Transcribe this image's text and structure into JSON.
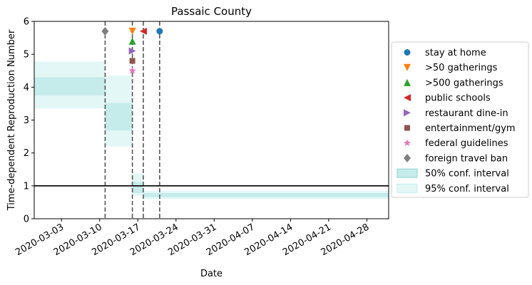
{
  "chart_data": {
    "type": "line",
    "title": "Passaic County",
    "xlabel": "Date",
    "ylabel": "Time-dependent Reproduction Number",
    "xlim": [
      "2020-02-27",
      "2020-05-02"
    ],
    "ylim": [
      0,
      6
    ],
    "yticks": [
      0,
      1,
      2,
      3,
      4,
      5,
      6
    ],
    "xticks": [
      "2020-03-03",
      "2020-03-10",
      "2020-03-17",
      "2020-03-24",
      "2020-03-31",
      "2020-04-07",
      "2020-04-14",
      "2020-04-21",
      "2020-04-28"
    ],
    "reference_line": {
      "y": 1,
      "color": "#000000"
    },
    "intervals": [
      {
        "start": "2020-02-27",
        "end": "2020-03-11",
        "ci50": [
          3.75,
          4.3
        ],
        "ci95": [
          3.35,
          4.78
        ]
      },
      {
        "start": "2020-03-11",
        "end": "2020-03-16",
        "ci50": [
          2.68,
          3.52
        ],
        "ci95": [
          2.2,
          4.35
        ]
      },
      {
        "start": "2020-03-16",
        "end": "2020-03-18",
        "ci50": [
          0.78,
          1.12
        ],
        "ci95": [
          0.7,
          1.38
        ]
      },
      {
        "start": "2020-03-18",
        "end": "2020-05-02",
        "ci50": [
          0.66,
          0.78
        ],
        "ci95": [
          0.6,
          0.84
        ]
      }
    ],
    "interventions": [
      {
        "name": "stay at home",
        "date": "2020-03-21",
        "y": 5.7,
        "marker": "circle",
        "color": "#1f77b4"
      },
      {
        "name": ">50 gatherings",
        "date": "2020-03-16",
        "y": 5.7,
        "marker": "triangle-down",
        "color": "#ff7f0e"
      },
      {
        "name": ">500 gatherings",
        "date": "2020-03-16",
        "y": 5.4,
        "marker": "triangle-up",
        "color": "#2ca02c"
      },
      {
        "name": "public schools",
        "date": "2020-03-18",
        "y": 5.7,
        "marker": "triangle-left",
        "color": "#d62728"
      },
      {
        "name": "restaurant dine-in",
        "date": "2020-03-16",
        "y": 5.1,
        "marker": "triangle-right",
        "color": "#9467bd"
      },
      {
        "name": "entertainment/gym",
        "date": "2020-03-16",
        "y": 4.8,
        "marker": "square",
        "color": "#8c564b"
      },
      {
        "name": "federal guidelines",
        "date": "2020-03-16",
        "y": 4.5,
        "marker": "star",
        "color": "#e377c2"
      },
      {
        "name": "foreign travel ban",
        "date": "2020-03-11",
        "y": 5.7,
        "marker": "diamond",
        "color": "#7f7f7f"
      }
    ],
    "vlines": [
      "2020-03-11",
      "2020-03-16",
      "2020-03-18",
      "2020-03-21"
    ],
    "legend_position": "right",
    "legend": [
      {
        "label": "stay at home",
        "kind": "marker",
        "marker": "circle",
        "color": "#1f77b4"
      },
      {
        "label": ">50 gatherings",
        "kind": "marker",
        "marker": "triangle-down",
        "color": "#ff7f0e"
      },
      {
        "label": ">500 gatherings",
        "kind": "marker",
        "marker": "triangle-up",
        "color": "#2ca02c"
      },
      {
        "label": "public schools",
        "kind": "marker",
        "marker": "triangle-left",
        "color": "#d62728"
      },
      {
        "label": "restaurant dine-in",
        "kind": "marker",
        "marker": "triangle-right",
        "color": "#9467bd"
      },
      {
        "label": "entertainment/gym",
        "kind": "marker",
        "marker": "square",
        "color": "#8c564b"
      },
      {
        "label": "federal guidelines",
        "kind": "marker",
        "marker": "star",
        "color": "#e377c2"
      },
      {
        "label": "foreign travel ban",
        "kind": "marker",
        "marker": "diamond",
        "color": "#7f7f7f"
      },
      {
        "label": "50% conf. interval",
        "kind": "patch",
        "color": "#c5ebea",
        "edge": "#8fd6d3"
      },
      {
        "label": "95% conf. interval",
        "kind": "patch",
        "color": "#e3f7f7",
        "edge": "#c3eceb"
      }
    ],
    "colors": {
      "ci50": "#c5ebea",
      "ci95": "#e3f7f7",
      "vline": "#555555"
    }
  }
}
